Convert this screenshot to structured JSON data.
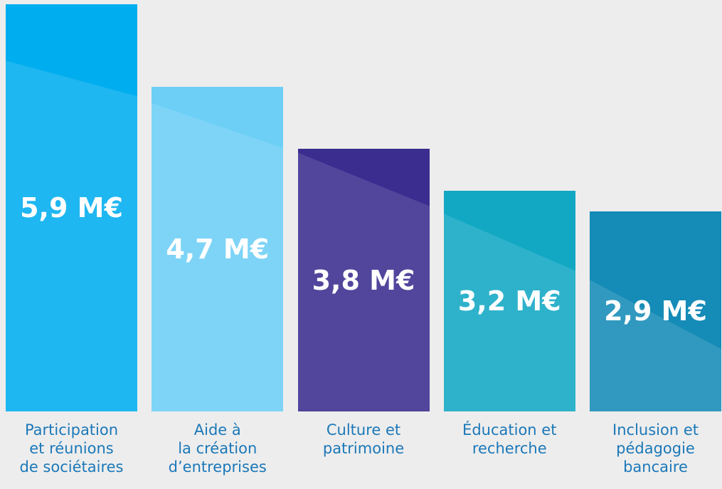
{
  "chart_data": {
    "type": "bar",
    "categories": [
      "Participation\net réunions\nde sociétaires",
      "Aide à\nla création\nd’entreprises",
      "Culture et\npatrimoine",
      "Éducation et\nrecherche",
      "Inclusion et\npédagogie\nbancaire"
    ],
    "values": [
      5.9,
      4.7,
      3.8,
      3.2,
      2.9
    ],
    "value_labels": [
      "5,9 M€",
      "4,7 M€",
      "3,8 M€",
      "3,2 M€",
      "2,9 M€"
    ],
    "colors": [
      "#00aeef",
      "#6dcff6",
      "#3a2d8f",
      "#12a8c4",
      "#158bb7"
    ]
  }
}
